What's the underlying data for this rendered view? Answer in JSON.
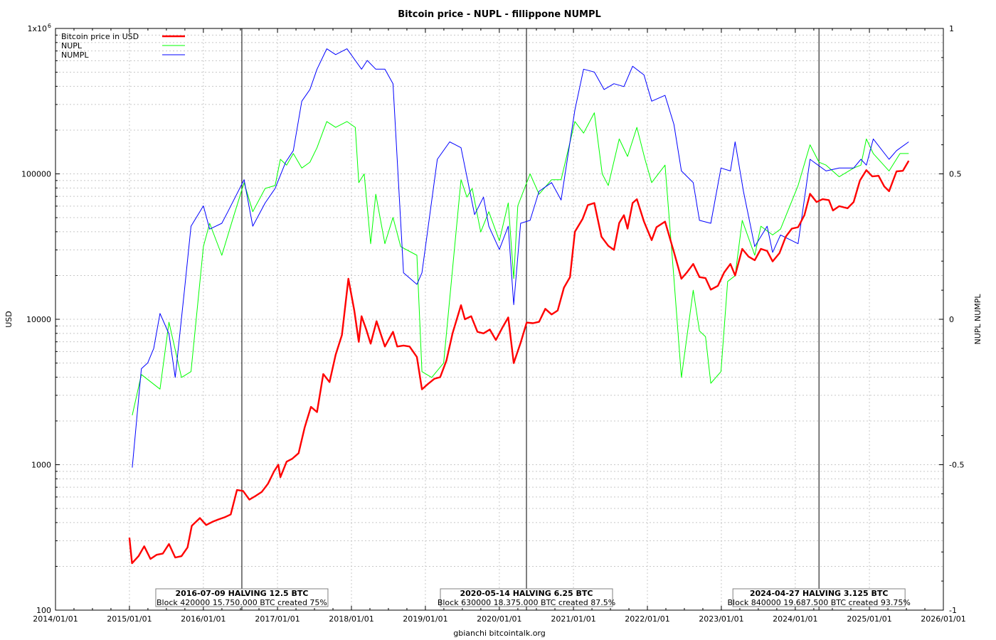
{
  "chart_data": {
    "type": "line",
    "title": "Bitcoin price - NUPL - fillippone NUMPL",
    "ylabel": "USD",
    "y2label": "NUPL NUMPL",
    "footer": "gbianchi bitcointalk.org",
    "y_scale": "log",
    "ylim": [
      100,
      1000000
    ],
    "y2lim": [
      -1,
      1
    ],
    "xlim": [
      "2014-01-01",
      "2026-01-01"
    ],
    "grid": true,
    "legend_position": "top-left",
    "x_tick_labels": [
      "2014/01/01",
      "2015/01/01",
      "2016/01/01",
      "2017/01/01",
      "2018/01/01",
      "2019/01/01",
      "2020/01/01",
      "2021/01/01",
      "2022/01/01",
      "2023/01/01",
      "2024/01/01",
      "2025/01/01",
      "2026/01/01"
    ],
    "y_tick_labels": [
      "100",
      "1000",
      "10000",
      "100000",
      "1x10"
    ],
    "y_tick_sup": "6",
    "y2_tick_labels": [
      "-1",
      "-0.5",
      "0",
      "0.5",
      "1"
    ],
    "colors": {
      "price": "#ff0000",
      "nupl": "#00ff00",
      "numpl": "#0000ff"
    },
    "halvings": [
      {
        "date": "2016-07-09",
        "line1": "2016-07-09 HALVING 12.5 BTC",
        "line2": "Block 420000 15.750.000 BTC created 75%"
      },
      {
        "date": "2020-05-14",
        "line1": "2020-05-14 HALVING 6.25 BTC",
        "line2": "Block 630000 18.375.000 BTC created 87.5%"
      },
      {
        "date": "2024-04-27",
        "line1": "2024-04-27 HALVING 3.125 BTC",
        "line2": "Block 840000 19.687.500 BTC created 93.75%"
      }
    ],
    "series": [
      {
        "name": "Bitcoin price in USD",
        "axis": "left",
        "x": [
          "2015-01-01",
          "2015-01-14",
          "2015-02-15",
          "2015-03-15",
          "2015-04-15",
          "2015-05-15",
          "2015-06-15",
          "2015-07-15",
          "2015-08-15",
          "2015-09-15",
          "2015-10-15",
          "2015-11-05",
          "2015-12-15",
          "2016-01-15",
          "2016-02-15",
          "2016-03-15",
          "2016-04-15",
          "2016-05-15",
          "2016-06-15",
          "2016-07-15",
          "2016-08-15",
          "2016-09-15",
          "2016-10-15",
          "2016-11-15",
          "2016-12-15",
          "2017-01-05",
          "2017-01-15",
          "2017-02-15",
          "2017-03-15",
          "2017-04-15",
          "2017-05-15",
          "2017-06-15",
          "2017-07-15",
          "2017-08-15",
          "2017-09-15",
          "2017-10-15",
          "2017-11-15",
          "2017-12-17",
          "2018-01-15",
          "2018-02-06",
          "2018-02-20",
          "2018-03-15",
          "2018-04-06",
          "2018-05-05",
          "2018-06-15",
          "2018-07-25",
          "2018-08-15",
          "2018-09-15",
          "2018-10-15",
          "2018-11-20",
          "2018-12-15",
          "2019-01-15",
          "2019-02-15",
          "2019-03-15",
          "2019-04-15",
          "2019-05-15",
          "2019-06-26",
          "2019-07-15",
          "2019-08-15",
          "2019-09-15",
          "2019-10-15",
          "2019-11-15",
          "2019-12-15",
          "2020-01-15",
          "2020-02-14",
          "2020-03-12",
          "2020-04-15",
          "2020-05-15",
          "2020-06-15",
          "2020-07-15",
          "2020-08-15",
          "2020-09-15",
          "2020-10-15",
          "2020-11-15",
          "2020-12-15",
          "2021-01-08",
          "2021-02-15",
          "2021-03-13",
          "2021-04-14",
          "2021-05-19",
          "2021-06-22",
          "2021-07-20",
          "2021-08-15",
          "2021-09-07",
          "2021-09-25",
          "2021-10-20",
          "2021-11-10",
          "2021-12-15",
          "2022-01-22",
          "2022-02-15",
          "2022-03-29",
          "2022-05-12",
          "2022-06-18",
          "2022-07-15",
          "2022-08-15",
          "2022-09-15",
          "2022-10-15",
          "2022-11-10",
          "2022-12-15",
          "2023-01-15",
          "2023-02-15",
          "2023-03-10",
          "2023-04-14",
          "2023-05-15",
          "2023-06-15",
          "2023-07-15",
          "2023-08-15",
          "2023-09-11",
          "2023-10-15",
          "2023-11-15",
          "2023-12-15",
          "2024-01-15",
          "2024-02-15",
          "2024-03-14",
          "2024-04-15",
          "2024-05-15",
          "2024-06-15",
          "2024-07-05",
          "2024-08-05",
          "2024-09-15",
          "2024-10-15",
          "2024-11-15",
          "2024-12-17",
          "2025-01-15",
          "2025-02-15",
          "2025-03-15",
          "2025-04-08",
          "2025-05-15",
          "2025-06-15",
          "2025-07-14"
        ],
        "y": [
          315,
          210,
          235,
          275,
          225,
          240,
          245,
          285,
          230,
          235,
          270,
          380,
          430,
          385,
          405,
          420,
          435,
          455,
          670,
          660,
          575,
          610,
          650,
          740,
          900,
          1000,
          820,
          1050,
          1100,
          1200,
          1800,
          2500,
          2300,
          4200,
          3700,
          5700,
          7800,
          19000,
          11500,
          7000,
          10500,
          8500,
          6800,
          9700,
          6500,
          8200,
          6500,
          6600,
          6500,
          5500,
          3300,
          3600,
          3900,
          4000,
          5200,
          8000,
          12500,
          10000,
          10500,
          8200,
          8000,
          8500,
          7200,
          8700,
          10300,
          5000,
          6900,
          9500,
          9400,
          9600,
          11800,
          10800,
          11500,
          16500,
          19500,
          40000,
          49000,
          61000,
          63000,
          37000,
          32000,
          30000,
          46000,
          52000,
          42000,
          63000,
          67000,
          47000,
          35000,
          43000,
          47000,
          29000,
          19000,
          21000,
          24000,
          19500,
          19200,
          16000,
          17000,
          21000,
          24000,
          20000,
          30500,
          27000,
          25500,
          30500,
          29500,
          25000,
          28500,
          37000,
          42000,
          43000,
          52000,
          73000,
          64000,
          67000,
          66000,
          56000,
          60000,
          58000,
          64000,
          90000,
          106000,
          96000,
          97000,
          82000,
          76000,
          104000,
          105000,
          123000
        ]
      },
      {
        "name": "NUPL",
        "axis": "right",
        "x": [
          "2015-01-15",
          "2015-03-01",
          "2015-06-01",
          "2015-07-15",
          "2015-09-15",
          "2015-11-01",
          "2016-01-01",
          "2016-02-01",
          "2016-04-01",
          "2016-06-01",
          "2016-07-20",
          "2016-09-01",
          "2016-11-01",
          "2016-12-20",
          "2017-01-15",
          "2017-02-15",
          "2017-03-20",
          "2017-05-01",
          "2017-06-10",
          "2017-07-15",
          "2017-09-01",
          "2017-10-15",
          "2017-12-10",
          "2018-01-20",
          "2018-02-06",
          "2018-03-05",
          "2018-04-06",
          "2018-05-01",
          "2018-06-15",
          "2018-07-25",
          "2018-09-01",
          "2018-11-20",
          "2018-12-15",
          "2019-02-01",
          "2019-04-01",
          "2019-06-26",
          "2019-07-25",
          "2019-08-20",
          "2019-10-01",
          "2019-11-10",
          "2020-01-01",
          "2020-02-14",
          "2020-03-12",
          "2020-04-01",
          "2020-06-01",
          "2020-07-15",
          "2020-09-15",
          "2020-11-01",
          "2021-01-08",
          "2021-02-20",
          "2021-04-14",
          "2021-05-23",
          "2021-06-22",
          "2021-08-15",
          "2021-09-25",
          "2021-11-10",
          "2021-12-20",
          "2022-01-22",
          "2022-03-29",
          "2022-05-12",
          "2022-06-18",
          "2022-08-15",
          "2022-09-15",
          "2022-10-15",
          "2022-11-10",
          "2022-12-30",
          "2023-02-01",
          "2023-03-10",
          "2023-04-14",
          "2023-06-15",
          "2023-07-15",
          "2023-09-11",
          "2023-10-20",
          "2024-01-15",
          "2024-03-14",
          "2024-04-27",
          "2024-06-01",
          "2024-08-05",
          "2024-10-15",
          "2024-11-20",
          "2024-12-17",
          "2025-01-20",
          "2025-04-08",
          "2025-06-01",
          "2025-07-14"
        ],
        "y": [
          -0.33,
          -0.19,
          -0.24,
          -0.01,
          -0.2,
          -0.18,
          0.25,
          0.33,
          0.22,
          0.36,
          0.47,
          0.37,
          0.45,
          0.46,
          0.55,
          0.53,
          0.57,
          0.52,
          0.54,
          0.59,
          0.68,
          0.66,
          0.68,
          0.66,
          0.47,
          0.5,
          0.26,
          0.43,
          0.26,
          0.35,
          0.25,
          0.22,
          -0.18,
          -0.2,
          -0.15,
          0.48,
          0.42,
          0.45,
          0.3,
          0.37,
          0.27,
          0.4,
          0.14,
          0.39,
          0.5,
          0.43,
          0.48,
          0.48,
          0.68,
          0.64,
          0.71,
          0.5,
          0.46,
          0.62,
          0.56,
          0.66,
          0.55,
          0.47,
          0.53,
          0.14,
          -0.2,
          0.1,
          -0.04,
          -0.06,
          -0.22,
          -0.18,
          0.13,
          0.15,
          0.34,
          0.22,
          0.32,
          0.29,
          0.31,
          0.46,
          0.6,
          0.54,
          0.53,
          0.49,
          0.52,
          0.53,
          0.62,
          0.57,
          0.51,
          0.57,
          0.57
        ]
      },
      {
        "name": "NUMPL",
        "axis": "right",
        "x": [
          "2015-01-15",
          "2015-03-01",
          "2015-04-01",
          "2015-05-01",
          "2015-06-01",
          "2015-07-15",
          "2015-08-15",
          "2015-10-01",
          "2015-11-01",
          "2016-01-01",
          "2016-02-01",
          "2016-04-01",
          "2016-05-01",
          "2016-07-20",
          "2016-09-01",
          "2016-11-01",
          "2016-12-20",
          "2017-02-10",
          "2017-03-20",
          "2017-05-01",
          "2017-06-10",
          "2017-07-15",
          "2017-09-01",
          "2017-10-15",
          "2017-12-10",
          "2018-01-20",
          "2018-02-20",
          "2018-03-20",
          "2018-05-01",
          "2018-06-15",
          "2018-07-25",
          "2018-09-15",
          "2018-11-20",
          "2018-12-15",
          "2019-03-01",
          "2019-05-01",
          "2019-06-26",
          "2019-09-01",
          "2019-10-15",
          "2019-11-10",
          "2020-01-01",
          "2020-02-14",
          "2020-03-12",
          "2020-04-15",
          "2020-06-01",
          "2020-07-15",
          "2020-09-15",
          "2020-11-01",
          "2021-01-08",
          "2021-02-20",
          "2021-04-14",
          "2021-06-01",
          "2021-07-20",
          "2021-09-07",
          "2021-10-20",
          "2021-12-15",
          "2022-01-22",
          "2022-03-29",
          "2022-05-12",
          "2022-06-18",
          "2022-08-15",
          "2022-09-15",
          "2022-11-10",
          "2022-12-30",
          "2023-02-15",
          "2023-03-10",
          "2023-04-20",
          "2023-06-15",
          "2023-08-15",
          "2023-09-11",
          "2023-10-20",
          "2024-01-15",
          "2024-03-14",
          "2024-06-01",
          "2024-08-05",
          "2024-10-15",
          "2024-11-20",
          "2024-12-17",
          "2025-01-20",
          "2025-04-08",
          "2025-05-15",
          "2025-07-14"
        ],
        "y": [
          -0.51,
          -0.17,
          -0.15,
          -0.1,
          0.02,
          -0.05,
          -0.2,
          0.11,
          0.32,
          0.39,
          0.31,
          0.33,
          0.37,
          0.48,
          0.32,
          0.4,
          0.45,
          0.54,
          0.58,
          0.75,
          0.79,
          0.86,
          0.93,
          0.91,
          0.93,
          0.89,
          0.86,
          0.89,
          0.86,
          0.86,
          0.81,
          0.16,
          0.12,
          0.16,
          0.55,
          0.61,
          0.59,
          0.36,
          0.42,
          0.32,
          0.24,
          0.32,
          0.05,
          0.33,
          0.34,
          0.44,
          0.47,
          0.41,
          0.72,
          0.86,
          0.85,
          0.79,
          0.81,
          0.8,
          0.87,
          0.84,
          0.75,
          0.77,
          0.67,
          0.51,
          0.47,
          0.34,
          0.33,
          0.52,
          0.51,
          0.61,
          0.44,
          0.25,
          0.32,
          0.23,
          0.29,
          0.26,
          0.55,
          0.51,
          0.52,
          0.52,
          0.55,
          0.53,
          0.62,
          0.55,
          0.58,
          0.61
        ]
      }
    ]
  }
}
